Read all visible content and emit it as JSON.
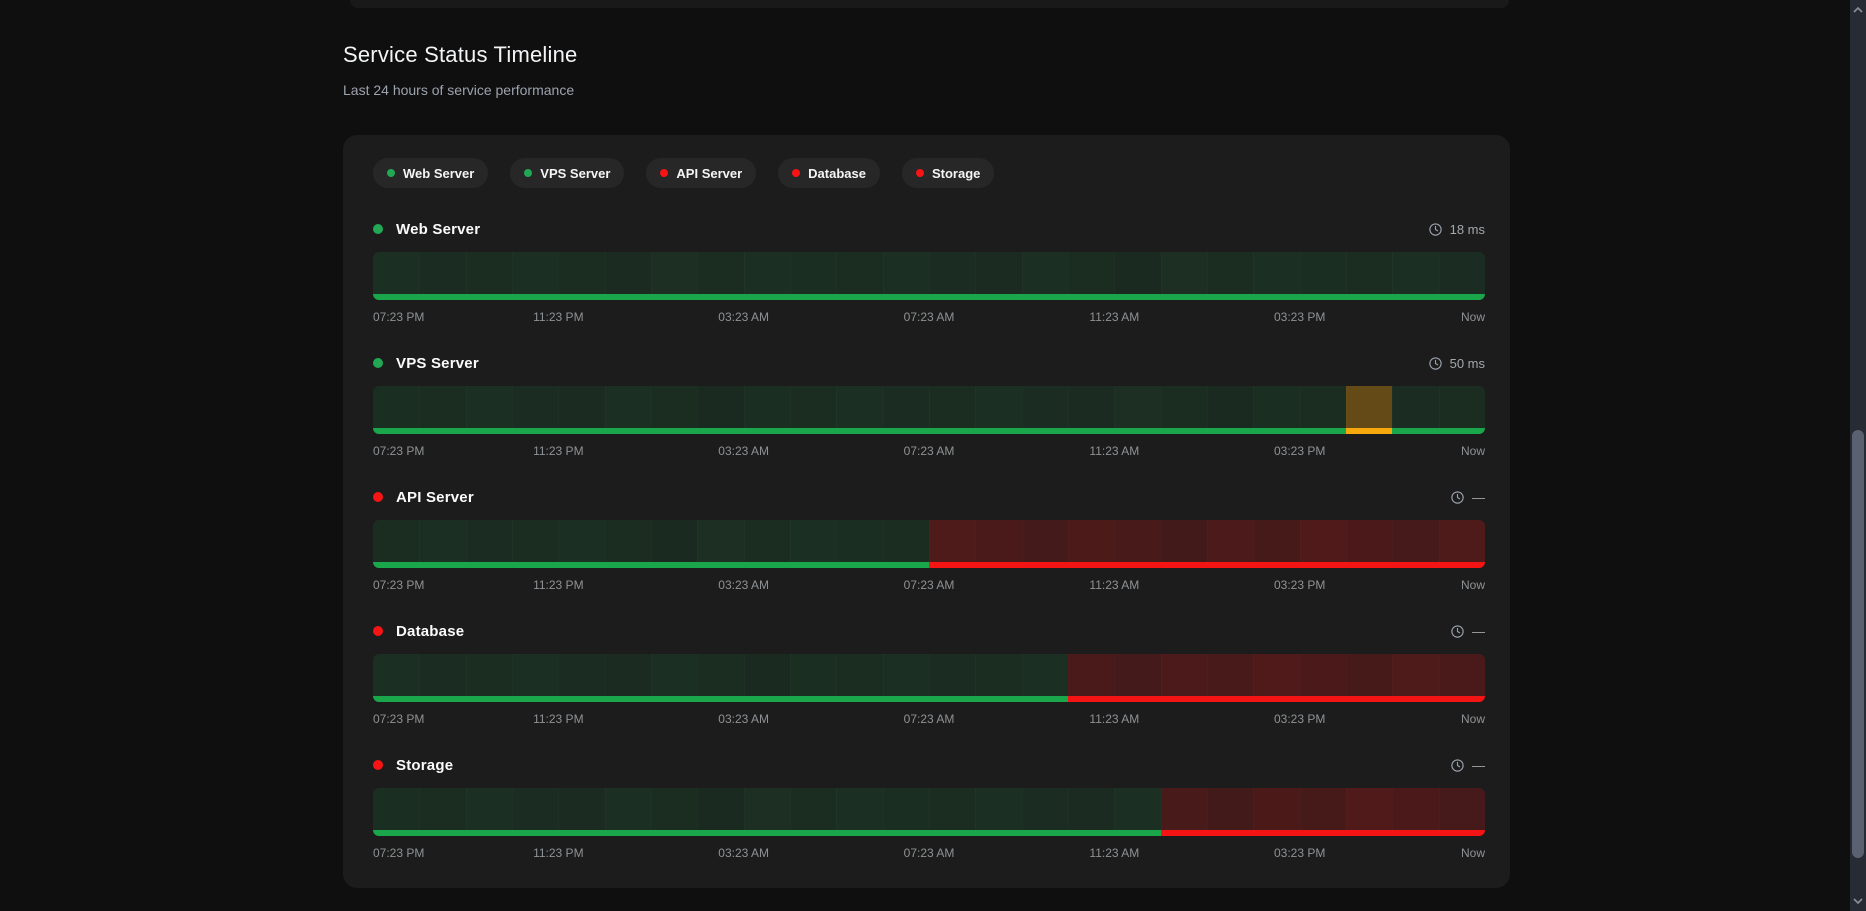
{
  "page": {
    "title": "Service Status Timeline",
    "subtitle": "Last 24 hours of service performance"
  },
  "colors": {
    "page_bg": "#0f0f0f",
    "card_bg": "#1c1c1c",
    "pill_bg": "#272727",
    "up_green": "#1aa64b",
    "down_red": "#f41414",
    "degraded_amber": "#f7a80d",
    "dot_green": "#22a855",
    "dot_red": "#f61414",
    "text_primary": "#fafafa",
    "text_secondary": "#9ca3af",
    "time_label": "#8f9295"
  },
  "timeline": {
    "time_labels": [
      "07:23 PM",
      "11:23 PM",
      "03:23 AM",
      "07:23 AM",
      "11:23 AM",
      "03:23 PM",
      "Now"
    ],
    "segments_per_row": 24,
    "services": [
      {
        "name": "Web Server",
        "status": "operational",
        "latency": "18 ms",
        "segments": [
          "up",
          "up",
          "up",
          "up",
          "up",
          "up",
          "up",
          "up",
          "up",
          "up",
          "up",
          "up",
          "up",
          "up",
          "up",
          "up",
          "up",
          "up",
          "up",
          "up",
          "up",
          "up",
          "up",
          "up"
        ]
      },
      {
        "name": "VPS Server",
        "status": "operational",
        "latency": "50 ms",
        "segments": [
          "up",
          "up",
          "up",
          "up",
          "up",
          "up",
          "up",
          "up",
          "up",
          "up",
          "up",
          "up",
          "up",
          "up",
          "up",
          "up",
          "up",
          "up",
          "up",
          "up",
          "up",
          "degraded",
          "up",
          "up"
        ]
      },
      {
        "name": "API Server",
        "status": "down",
        "latency": "—",
        "segments": [
          "up",
          "up",
          "up",
          "up",
          "up",
          "up",
          "up",
          "up",
          "up",
          "up",
          "up",
          "up",
          "down",
          "down",
          "down",
          "down",
          "down",
          "down",
          "down",
          "down",
          "down",
          "down",
          "down",
          "down"
        ]
      },
      {
        "name": "Database",
        "status": "down",
        "latency": "—",
        "segments": [
          "up",
          "up",
          "up",
          "up",
          "up",
          "up",
          "up",
          "up",
          "up",
          "up",
          "up",
          "up",
          "up",
          "up",
          "up",
          "down",
          "down",
          "down",
          "down",
          "down",
          "down",
          "down",
          "down",
          "down"
        ]
      },
      {
        "name": "Storage",
        "status": "down",
        "latency": "—",
        "segments": [
          "up",
          "up",
          "up",
          "up",
          "up",
          "up",
          "up",
          "up",
          "up",
          "up",
          "up",
          "up",
          "up",
          "up",
          "up",
          "up",
          "up",
          "down",
          "down",
          "down",
          "down",
          "down",
          "down",
          "down"
        ]
      }
    ]
  }
}
